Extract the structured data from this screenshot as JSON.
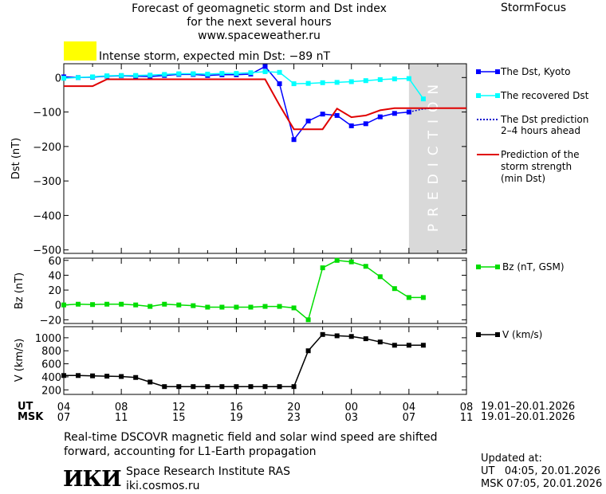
{
  "header": {
    "title_lines": [
      "Forecast of geomagnetic storm and Dst index",
      "for the next several hours",
      "www.spaceweather.ru"
    ],
    "brand": "StormFocus"
  },
  "storm": {
    "swatch_color": "#ffff00",
    "text": "Intense storm, expected min Dst: −89 nT"
  },
  "prediction_label": "PREDICTION",
  "legend": {
    "dst_kyoto": "The Dst, Kyoto",
    "recovered": "The recovered Dst",
    "prediction_line1": "The Dst prediction",
    "prediction_line2": "2–4 hours ahead",
    "strength_line1": "Prediction of the",
    "strength_line2": "storm strength",
    "strength_line3": "(min Dst)",
    "bz": "Bz (nT, GSM)",
    "v": "V (km/s)"
  },
  "time_axis": {
    "ut_label": "UT",
    "msk_label": "MSK",
    "ut_ticks": [
      "04",
      "08",
      "12",
      "16",
      "20",
      "00",
      "04",
      "08"
    ],
    "msk_ticks": [
      "07",
      "11",
      "15",
      "19",
      "23",
      "03",
      "07",
      "11"
    ],
    "ut_range": "19.01–20.01.2026",
    "msk_range": "19.01–20.01.2026"
  },
  "footer": {
    "note_line1": "Real-time DSCOVR magnetic field and solar wind speed are shifted",
    "note_line2": "forward, accounting for L1-Earth propagation",
    "institute": "Space Research Institute RAS",
    "site": "iki.cosmos.ru",
    "logo": "ИКИ",
    "updated_label": "Updated at:",
    "updated_ut": "UT   04:05, 20.01.2026",
    "updated_msk": "MSK 07:05, 20.01.2026"
  },
  "chart_data": [
    {
      "type": "line",
      "ylabel": "Dst (nT)",
      "xlim": [
        0,
        28
      ],
      "ylim": [
        -510,
        40
      ],
      "yticks": [
        0,
        -100,
        -200,
        -300,
        -400,
        -500
      ],
      "prediction_band": [
        24,
        28
      ],
      "series": [
        {
          "name": "The Dst, Kyoto",
          "color": "#0000ff",
          "x": [
            0,
            1,
            2,
            3,
            4,
            5,
            6,
            7,
            8,
            9,
            10,
            11,
            12,
            13,
            14,
            15,
            16,
            17,
            18,
            19,
            20,
            21,
            22,
            23,
            24
          ],
          "y": [
            2,
            0,
            1,
            4,
            5,
            4,
            3,
            6,
            9,
            9,
            6,
            8,
            8,
            10,
            32,
            -18,
            -180,
            -126,
            -106,
            -110,
            -140,
            -134,
            -114,
            -104,
            -100
          ]
        },
        {
          "name": "The recovered Dst",
          "color": "#00ffff",
          "x": [
            0,
            1,
            2,
            3,
            4,
            5,
            6,
            7,
            8,
            9,
            10,
            11,
            12,
            13,
            14,
            15,
            16,
            17,
            18,
            19,
            20,
            21,
            22,
            23,
            24,
            25
          ],
          "y": [
            -2,
            0,
            2,
            5,
            6,
            6,
            7,
            9,
            11,
            11,
            10,
            12,
            12,
            14,
            17,
            15,
            -18,
            -17,
            -15,
            -14,
            -12,
            -9,
            -6,
            -4,
            -3,
            -62
          ]
        },
        {
          "name": "The Dst prediction 2–4 hours ahead",
          "color": "#0000cc",
          "x": [
            24,
            25,
            26
          ],
          "y": [
            -100,
            -91,
            -88
          ]
        },
        {
          "name": "Prediction of the storm strength (min Dst)",
          "color": "#e00000",
          "x": [
            0,
            1,
            2,
            3,
            4,
            5,
            6,
            7,
            8,
            9,
            10,
            11,
            12,
            13,
            14,
            15,
            16,
            17,
            18,
            19,
            20,
            21,
            22,
            23,
            24,
            25,
            26,
            27,
            28
          ],
          "y": [
            -25,
            -25,
            -25,
            -5,
            -5,
            -5,
            -5,
            -5,
            -5,
            -5,
            -5,
            -5,
            -5,
            -5,
            -5,
            -80,
            -150,
            -150,
            -150,
            -90,
            -115,
            -110,
            -95,
            -89,
            -89,
            -89,
            -89,
            -89,
            -89
          ]
        }
      ]
    },
    {
      "type": "line",
      "ylabel": "Bz (nT)",
      "xlim": [
        0,
        28
      ],
      "ylim": [
        -25,
        63
      ],
      "yticks": [
        60,
        40,
        20,
        0,
        -20
      ],
      "series": [
        {
          "name": "Bz (nT, GSM)",
          "color": "#00dd00",
          "x": [
            0,
            1,
            2,
            3,
            4,
            5,
            6,
            7,
            8,
            9,
            10,
            11,
            12,
            13,
            14,
            15,
            16,
            17,
            18,
            19,
            20,
            21,
            22,
            23,
            24,
            25
          ],
          "y": [
            0,
            1,
            0.5,
            1,
            1,
            0,
            -2,
            1,
            0,
            -1,
            -3,
            -3,
            -3,
            -3,
            -2,
            -2,
            -4,
            -20,
            50,
            60,
            58,
            52,
            38,
            22,
            10,
            10
          ]
        }
      ]
    },
    {
      "type": "line",
      "ylabel": "V (km/s)",
      "xlim": [
        0,
        28
      ],
      "ylim": [
        130,
        1170
      ],
      "yticks": [
        1000,
        800,
        600,
        400,
        200
      ],
      "series": [
        {
          "name": "V (km/s)",
          "color": "#000000",
          "x": [
            0,
            1,
            2,
            3,
            4,
            5,
            6,
            7,
            8,
            9,
            10,
            11,
            12,
            13,
            14,
            15,
            16,
            17,
            18,
            19,
            20,
            21,
            22,
            23,
            24,
            25
          ],
          "y": [
            420,
            420,
            415,
            410,
            405,
            390,
            320,
            250,
            250,
            250,
            250,
            250,
            250,
            250,
            250,
            250,
            250,
            800,
            1050,
            1030,
            1020,
            985,
            935,
            885,
            885,
            885
          ]
        }
      ]
    }
  ]
}
